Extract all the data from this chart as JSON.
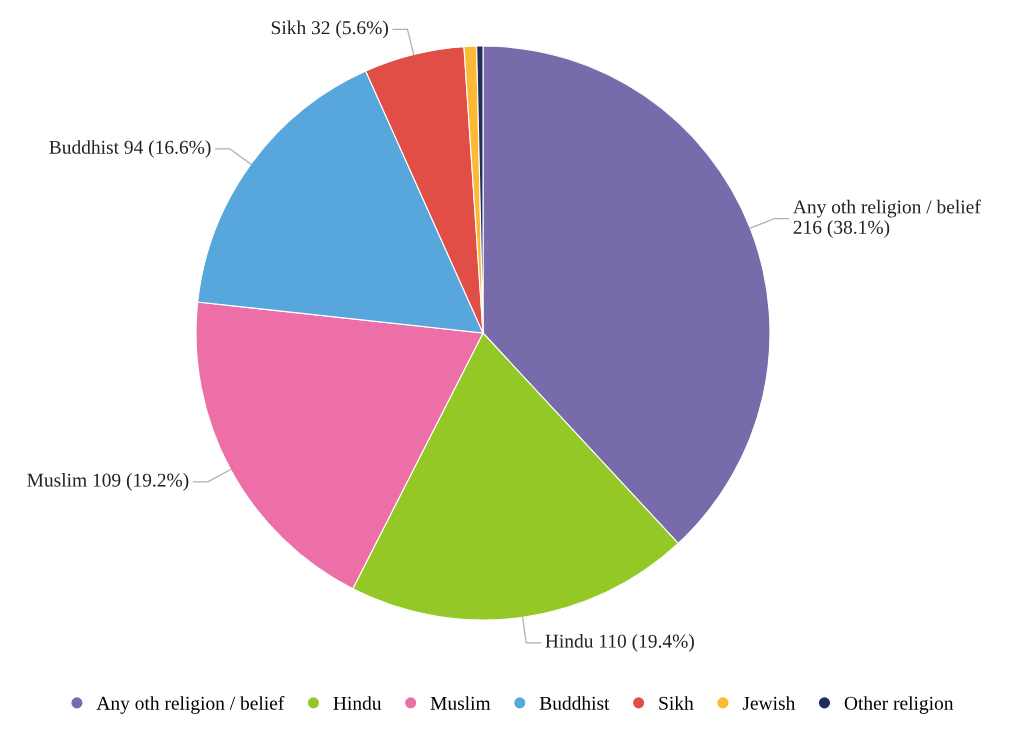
{
  "chart_data": {
    "type": "pie",
    "categories": [
      "Any oth religion / belief",
      "Hindu",
      "Muslim",
      "Buddhist",
      "Sikh",
      "Jewish",
      "Other religion"
    ],
    "values": [
      216,
      110,
      109,
      94,
      32,
      4,
      2
    ],
    "colors": [
      "#786bab",
      "#94c827",
      "#ec6fa8",
      "#58a7dc",
      "#e14e45",
      "#fbb934",
      "#1f2d5a"
    ],
    "value_labels": [
      "216 (38.1%)",
      "110 (19.4%)",
      "109 (19.2%)",
      "94 (16.6%)",
      "32 (5.6%)",
      null,
      null
    ],
    "legend": "bottom"
  }
}
